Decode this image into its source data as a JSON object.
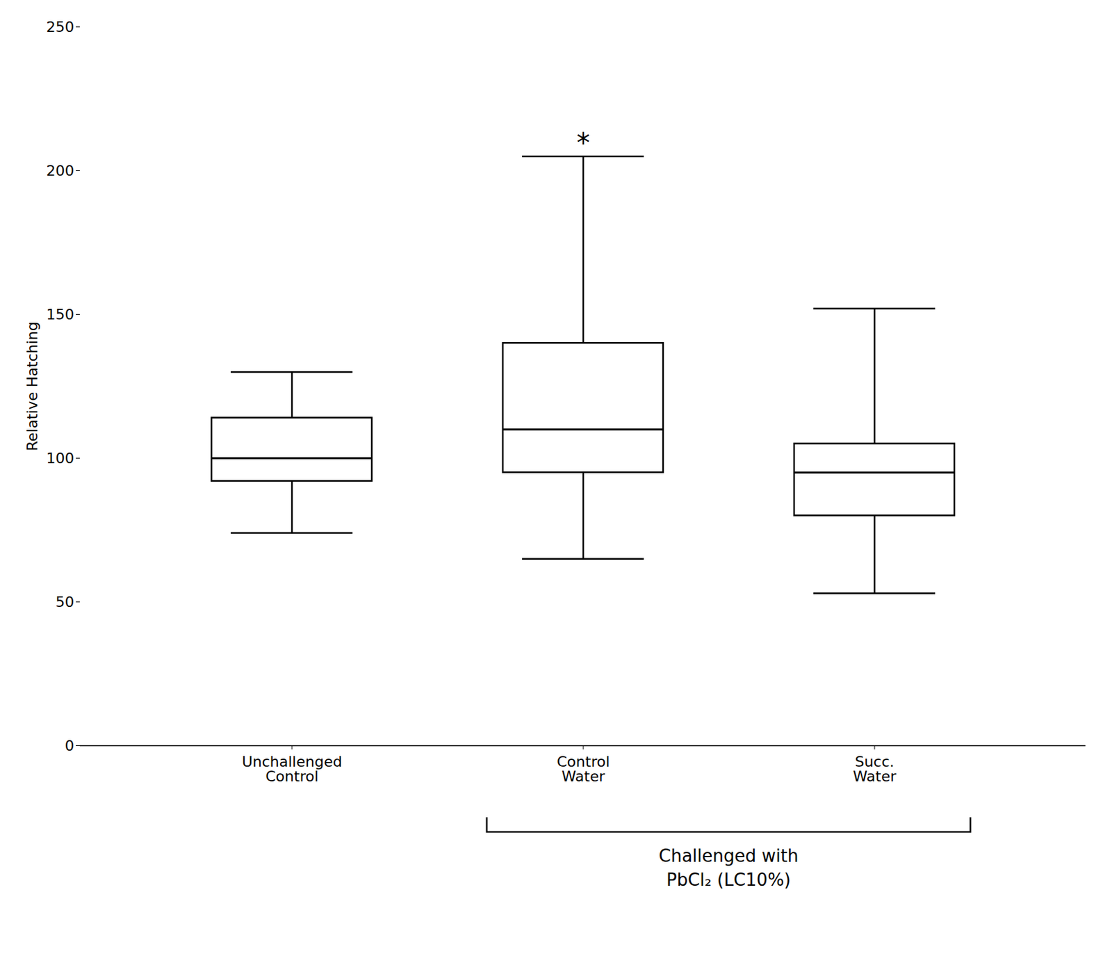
{
  "chart_data": {
    "type": "box",
    "ylabel": "Relative Hatching",
    "categories": [
      "Unchallenged\nControl",
      "Control\nWater",
      "Succ.\nWater"
    ],
    "whisker_low": [
      74,
      65,
      53
    ],
    "q1": [
      92,
      95,
      80
    ],
    "median": [
      100,
      110,
      95
    ],
    "q3": [
      114,
      140,
      105
    ],
    "whisker_high": [
      130,
      205,
      152
    ],
    "annotations": [
      {
        "category": "Control\nWater",
        "text": "*"
      }
    ],
    "bracket": {
      "categories": [
        "Control\nWater",
        "Succ.\nWater"
      ],
      "text": "Challenged with\nPbCl₂ (LC10%)"
    },
    "ylim": [
      0,
      250
    ],
    "yticks": [
      0,
      50,
      100,
      150,
      200,
      250
    ],
    "grid": false
  }
}
